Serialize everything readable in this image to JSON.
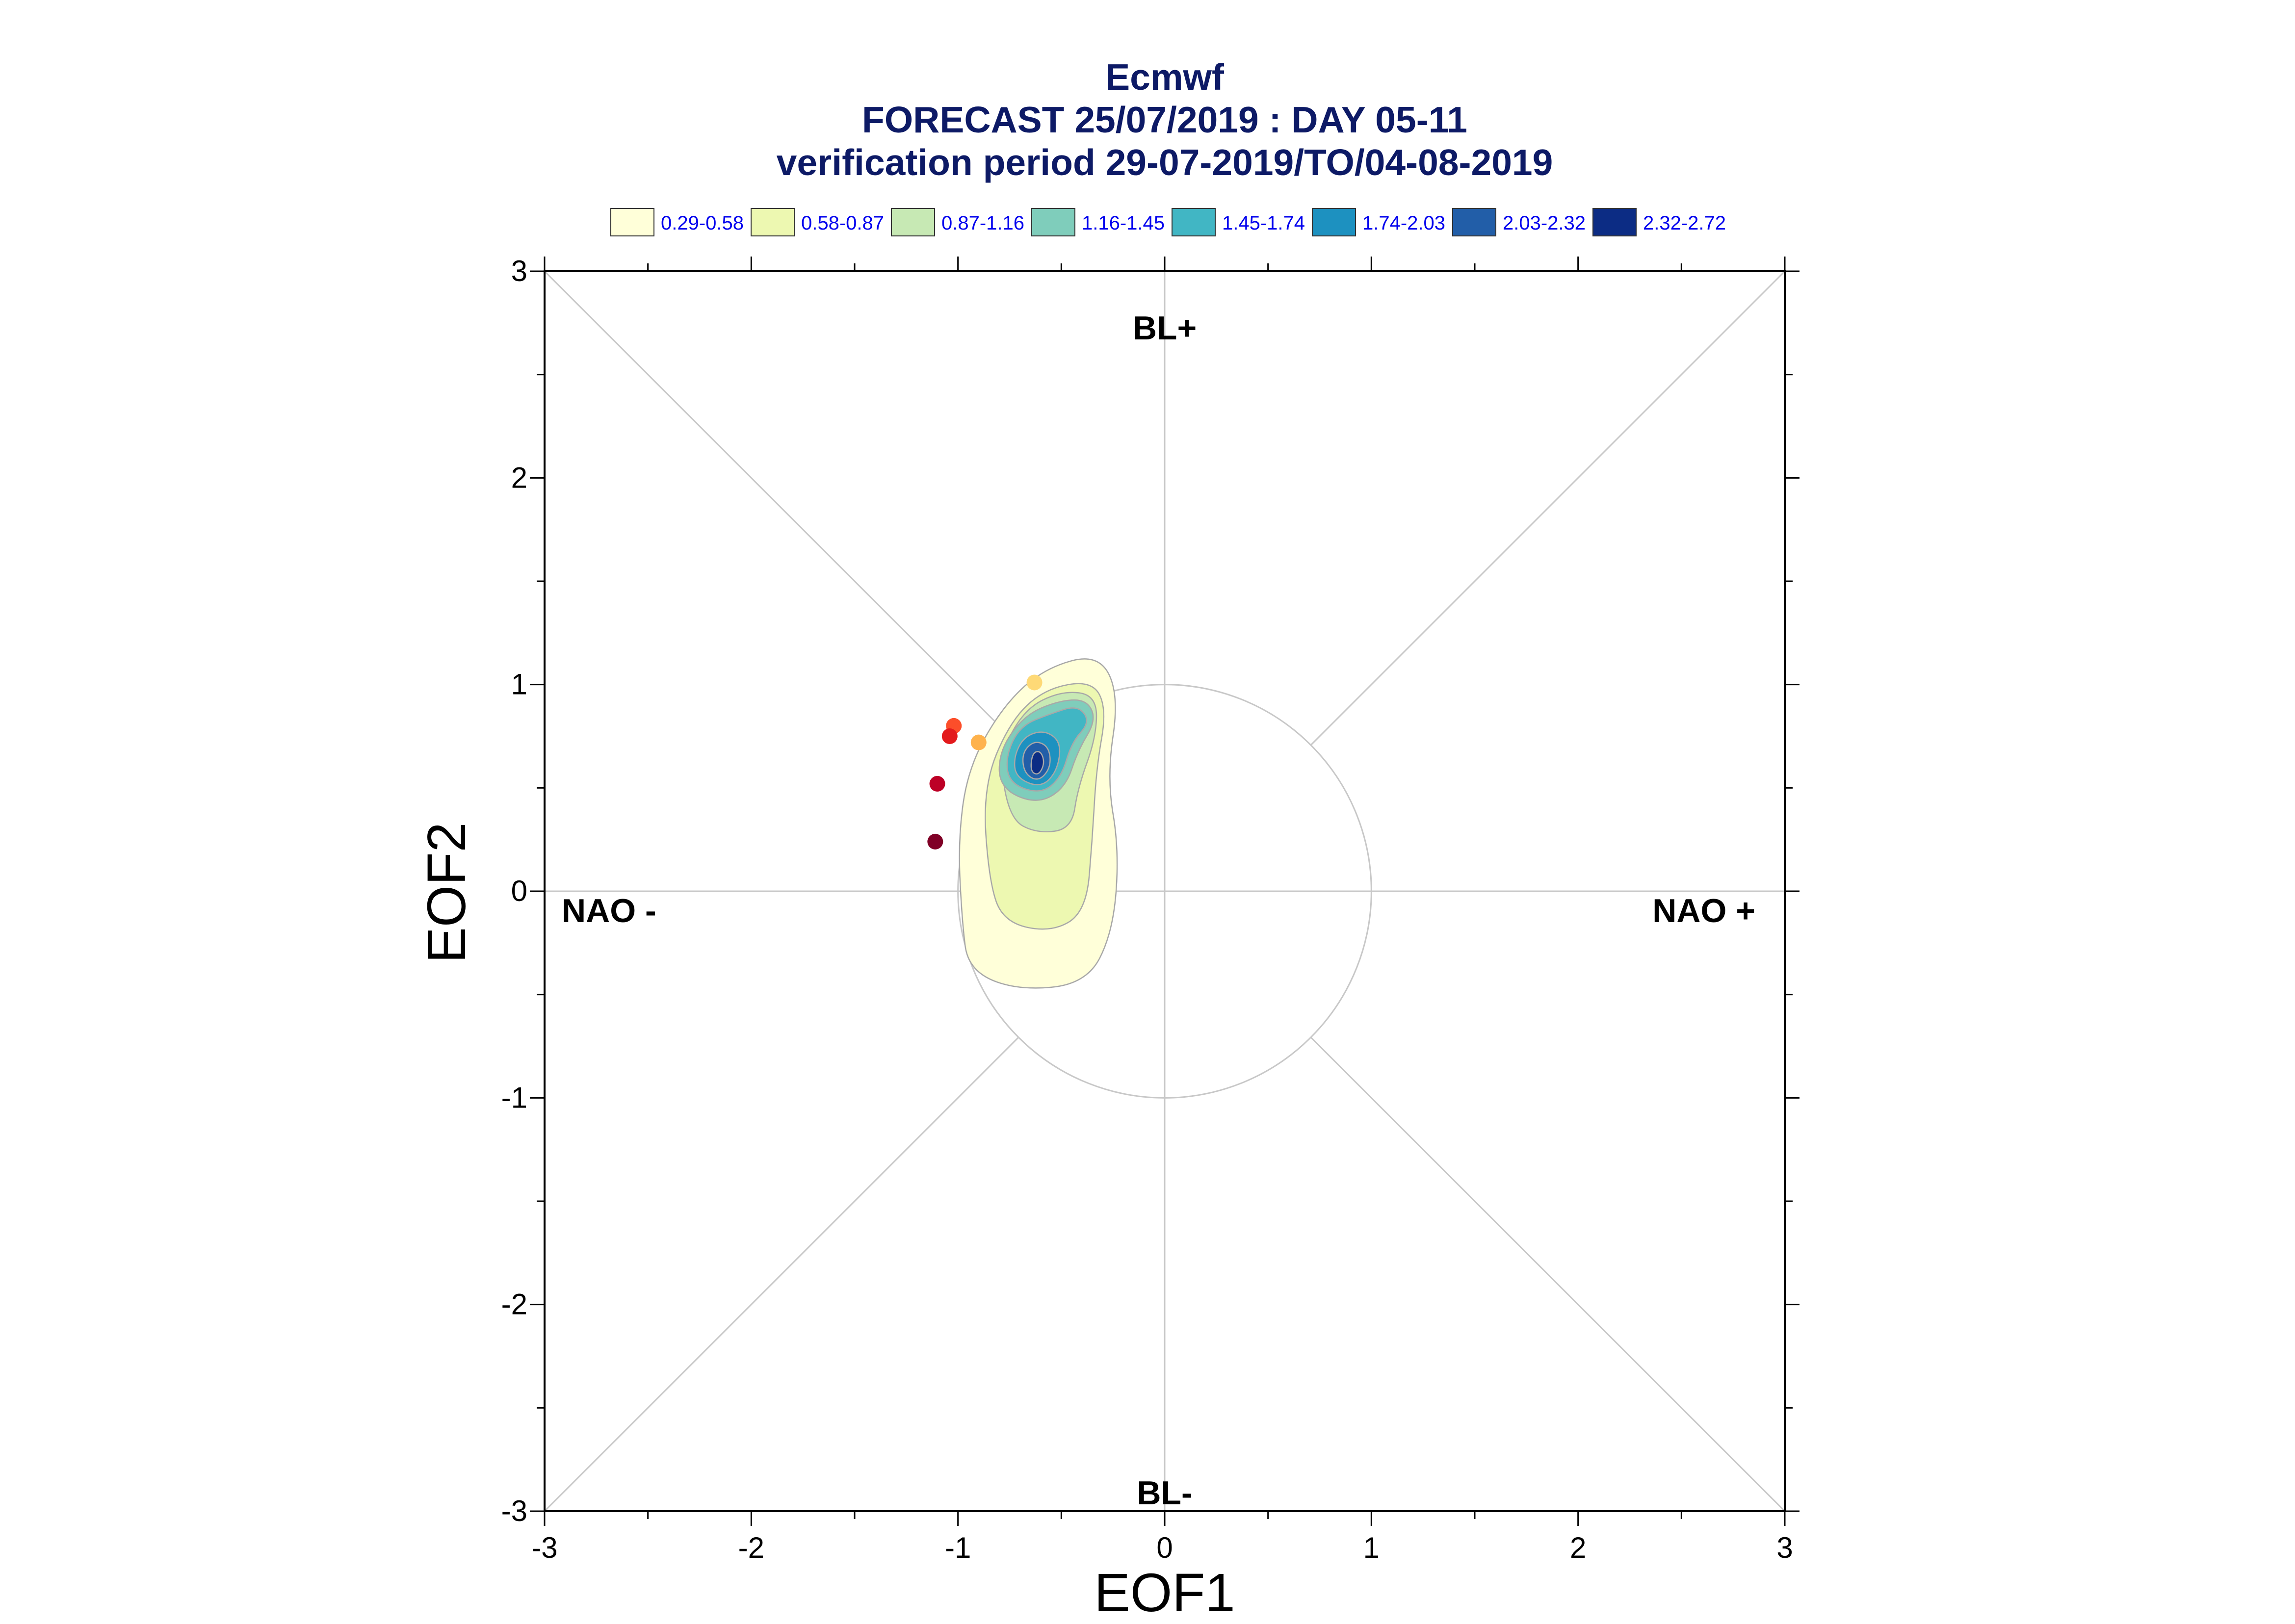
{
  "title": {
    "line1": "Ecmwf",
    "line2": "FORECAST 25/07/2019 : DAY 05-11",
    "line3": "verification period 29-07-2019/TO/04-08-2019"
  },
  "legend": [
    {
      "label": "0.29-0.58",
      "color": "#ffffd9"
    },
    {
      "label": "0.58-0.87",
      "color": "#edf8b1"
    },
    {
      "label": "0.87-1.16",
      "color": "#c7e9b4"
    },
    {
      "label": "1.16-1.45",
      "color": "#7fcdbb"
    },
    {
      "label": "1.45-1.74",
      "color": "#41b6c4"
    },
    {
      "label": "1.74-2.03",
      "color": "#1d91c0"
    },
    {
      "label": "2.03-2.32",
      "color": "#225ea8"
    },
    {
      "label": "2.32-2.72",
      "color": "#0c2c84"
    }
  ],
  "chart_data": {
    "type": "scatter",
    "xlabel": "EOF1",
    "ylabel": "EOF2",
    "xlim": [
      -3,
      3
    ],
    "ylim": [
      -3,
      3
    ],
    "x_ticks": [
      "-3",
      "-2",
      "-1",
      "0",
      "1",
      "2",
      "3"
    ],
    "y_ticks": [
      "-3",
      "-2",
      "-1",
      "0",
      "1",
      "2",
      "3"
    ],
    "regions": {
      "top": "BL+",
      "bottom": "BL-",
      "left": "NAO -",
      "right": "NAO +"
    },
    "unit_circle_radius": 1,
    "density_levels": [
      0.29,
      0.58,
      0.87,
      1.16,
      1.45,
      1.74,
      2.03,
      2.32,
      2.72
    ],
    "density_peak": [
      -0.63,
      0.63
    ],
    "points": [
      {
        "x": -0.63,
        "y": 1.01,
        "color": "#fed976"
      },
      {
        "x": -0.9,
        "y": 0.72,
        "color": "#feb24c"
      },
      {
        "x": -1.02,
        "y": 0.8,
        "color": "#fc4e2a"
      },
      {
        "x": -1.04,
        "y": 0.75,
        "color": "#e31a1c"
      },
      {
        "x": -1.1,
        "y": 0.52,
        "color": "#bd0026"
      },
      {
        "x": -1.11,
        "y": 0.24,
        "color": "#800026"
      }
    ]
  }
}
